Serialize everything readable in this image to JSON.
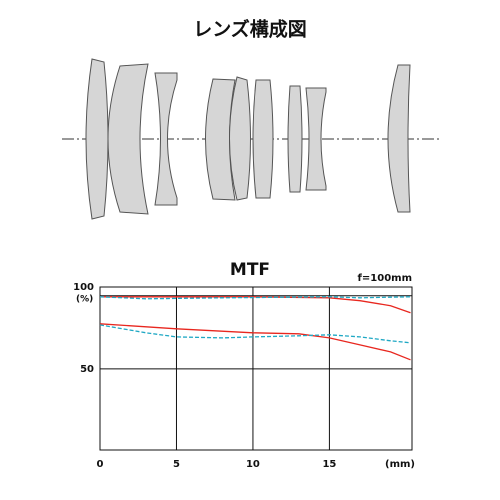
{
  "lens_diagram": {
    "title": "レンズ構成図"
  },
  "chart_data": {
    "type": "line",
    "title": "MTF",
    "annotation": "f=100mm",
    "y_unit": "(%)",
    "x_unit": "(mm)",
    "xlim": [
      0,
      20.4
    ],
    "xticks": [
      0,
      5,
      10,
      15
    ],
    "ylim": [
      -5.5,
      106
    ],
    "yticks": [
      100,
      50
    ],
    "grid": true,
    "series": [
      {
        "color": "#e8271f",
        "dash": false,
        "x": [
          0,
          10,
          15,
          17,
          19,
          20.3
        ],
        "values": [
          99.3,
          99.3,
          98.6,
          96.6,
          93.2,
          88.4
        ]
      },
      {
        "color": "#1fa8c4",
        "dash": true,
        "x": [
          0,
          3,
          8,
          15,
          17,
          20.3
        ],
        "values": [
          99.3,
          97.9,
          98.6,
          99.3,
          98.6,
          99.3
        ]
      },
      {
        "color": "#e8271f",
        "dash": false,
        "x": [
          0,
          5,
          10,
          13,
          15,
          17,
          19,
          20.3
        ],
        "values": [
          80.8,
          77.4,
          74.7,
          74,
          71.2,
          66.4,
          61.6,
          56.2
        ]
      },
      {
        "color": "#1fa8c4",
        "dash": true,
        "x": [
          0,
          3,
          5,
          8,
          10,
          13,
          15,
          17,
          19,
          20.3
        ],
        "values": [
          80.1,
          74.7,
          71.9,
          71.2,
          71.9,
          72.6,
          73.3,
          71.9,
          69.2,
          67.8
        ]
      }
    ]
  }
}
